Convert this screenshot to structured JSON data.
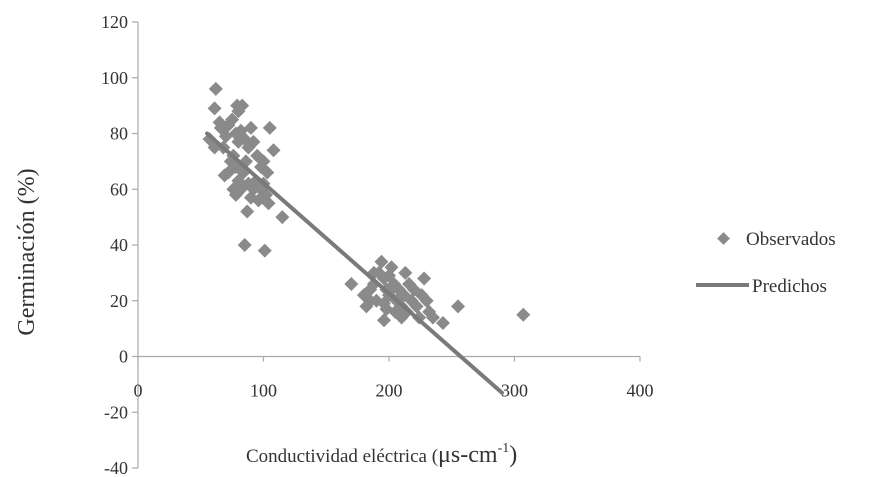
{
  "chart_data": {
    "type": "scatter",
    "xlim": [
      0,
      400
    ],
    "ylim": [
      -40,
      120
    ],
    "x_ticks": [
      "0",
      "100",
      "200",
      "300",
      "400"
    ],
    "y_ticks": [
      "120",
      "100",
      "80",
      "60",
      "40",
      "20",
      "0",
      "-20",
      "-40"
    ],
    "xlabel": {
      "main": "Conductividad eléctrica (",
      "unit": "μs-cm",
      "sup": "-1",
      "close": ")"
    },
    "ylabel": "Germinación (%)",
    "grid": false,
    "legend_position": "right",
    "colors": {
      "observed": "#8a8a8a",
      "predicted": "#7a7a7a",
      "axis": "#aaaaaa",
      "text": "#333333"
    },
    "series": [
      {
        "name": "Observados",
        "kind": "scatter",
        "marker": "diamond",
        "points": [
          [
            62,
            96
          ],
          [
            61,
            89
          ],
          [
            66,
            82
          ],
          [
            79,
            90
          ],
          [
            83,
            90
          ],
          [
            80,
            88
          ],
          [
            57,
            78
          ],
          [
            61,
            75
          ],
          [
            65,
            84
          ],
          [
            70,
            79
          ],
          [
            72,
            83
          ],
          [
            75,
            85
          ],
          [
            78,
            80
          ],
          [
            80,
            77
          ],
          [
            82,
            81
          ],
          [
            85,
            78
          ],
          [
            88,
            75
          ],
          [
            90,
            82
          ],
          [
            92,
            77
          ],
          [
            95,
            72
          ],
          [
            98,
            68
          ],
          [
            100,
            70
          ],
          [
            103,
            66
          ],
          [
            105,
            82
          ],
          [
            108,
            74
          ],
          [
            68,
            75
          ],
          [
            69,
            65
          ],
          [
            72,
            66
          ],
          [
            74,
            70
          ],
          [
            76,
            72
          ],
          [
            78,
            68
          ],
          [
            80,
            63
          ],
          [
            82,
            60
          ],
          [
            84,
            66
          ],
          [
            86,
            70
          ],
          [
            88,
            62
          ],
          [
            90,
            57
          ],
          [
            92,
            60
          ],
          [
            94,
            63
          ],
          [
            96,
            56
          ],
          [
            98,
            60
          ],
          [
            100,
            62
          ],
          [
            102,
            58
          ],
          [
            104,
            55
          ],
          [
            76,
            60
          ],
          [
            78,
            58
          ],
          [
            85,
            40
          ],
          [
            101,
            38
          ],
          [
            87,
            52
          ],
          [
            115,
            50
          ],
          [
            170,
            26
          ],
          [
            180,
            22
          ],
          [
            182,
            18
          ],
          [
            185,
            24
          ],
          [
            188,
            26
          ],
          [
            190,
            20
          ],
          [
            192,
            30
          ],
          [
            194,
            34
          ],
          [
            196,
            28
          ],
          [
            198,
            24
          ],
          [
            200,
            22
          ],
          [
            202,
            32
          ],
          [
            204,
            26
          ],
          [
            206,
            20
          ],
          [
            208,
            24
          ],
          [
            210,
            18
          ],
          [
            212,
            22
          ],
          [
            214,
            16
          ],
          [
            216,
            26
          ],
          [
            218,
            20
          ],
          [
            220,
            24
          ],
          [
            222,
            18
          ],
          [
            224,
            14
          ],
          [
            226,
            22
          ],
          [
            228,
            28
          ],
          [
            230,
            20
          ],
          [
            232,
            16
          ],
          [
            235,
            14
          ],
          [
            243,
            12
          ],
          [
            255,
            18
          ],
          [
            196,
            13
          ],
          [
            198,
            17
          ],
          [
            205,
            16
          ],
          [
            210,
            14
          ],
          [
            213,
            30
          ],
          [
            196,
            19
          ],
          [
            200,
            29
          ],
          [
            202,
            24
          ],
          [
            188,
            30
          ],
          [
            185,
            20
          ],
          [
            307,
            15
          ]
        ]
      },
      {
        "name": "Predichos",
        "kind": "line",
        "points": [
          [
            55,
            80
          ],
          [
            290,
            -13
          ]
        ]
      }
    ]
  }
}
